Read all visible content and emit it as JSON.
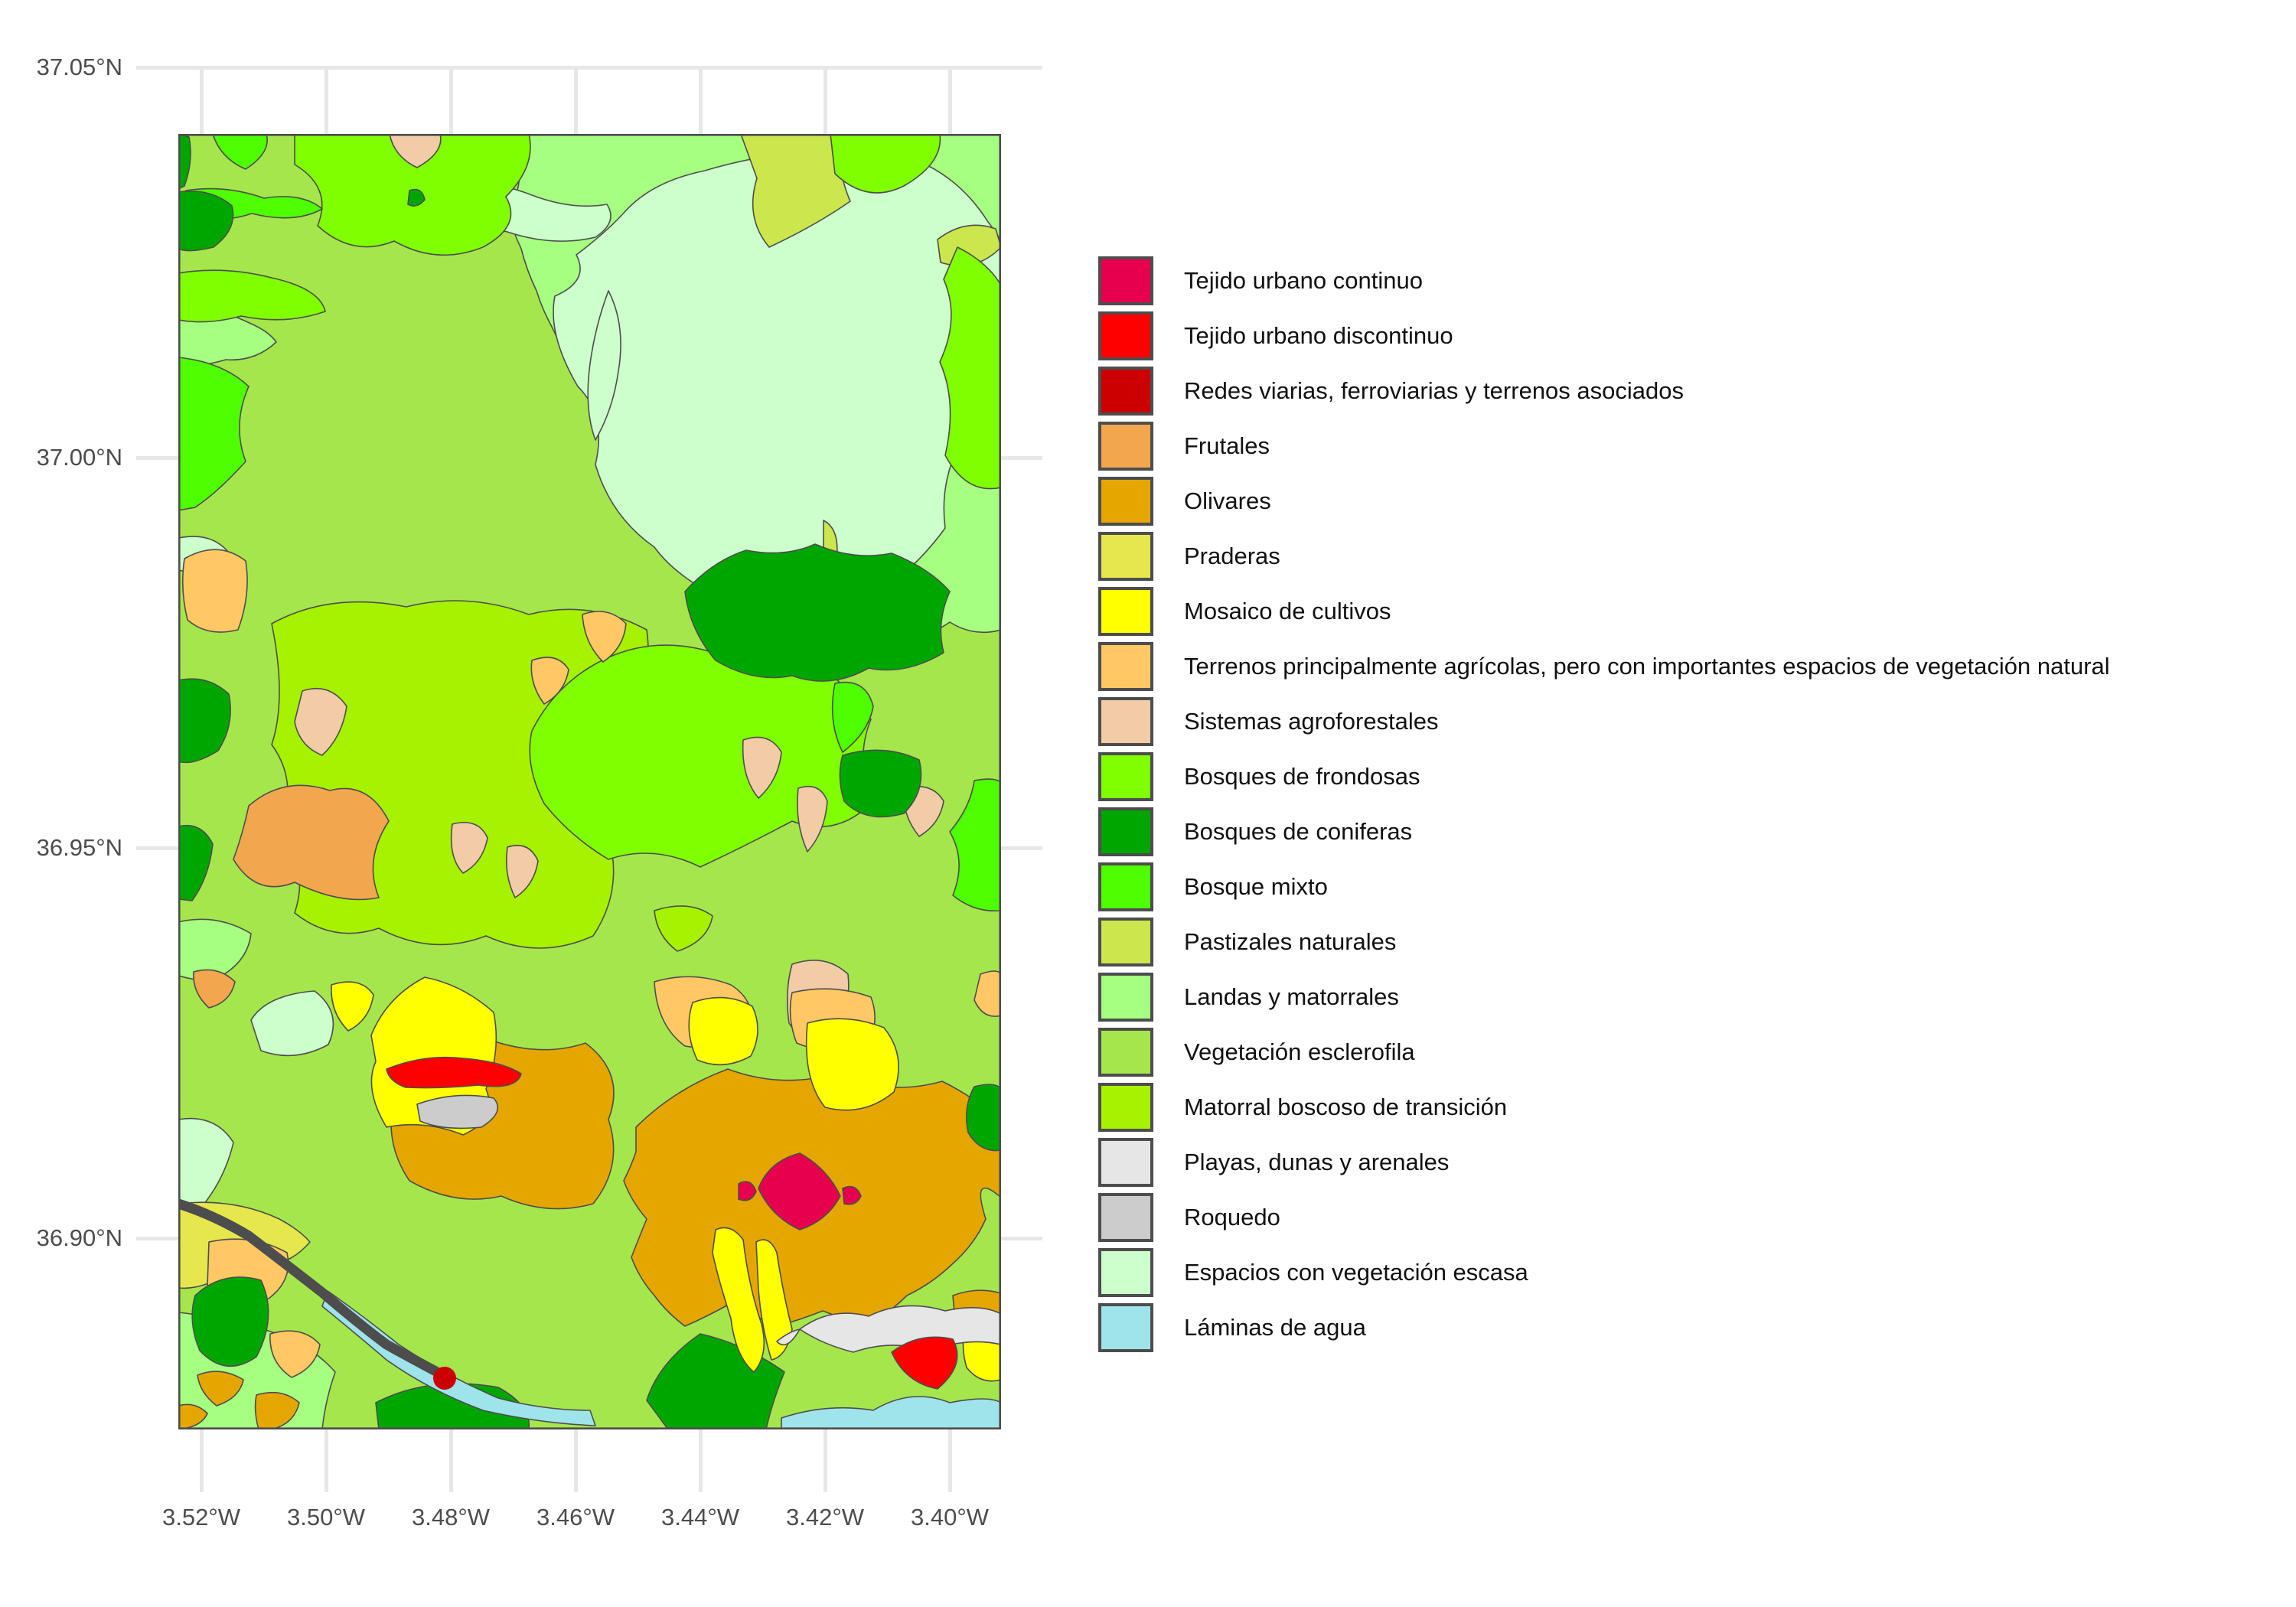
{
  "figure": {
    "type": "land-cover-map",
    "background": "#FFFFFF"
  },
  "axes": {
    "x_ticks": [
      "3.52°W",
      "3.50°W",
      "3.48°W",
      "3.46°W",
      "3.44°W",
      "3.42°W",
      "3.40°W"
    ],
    "y_ticks": [
      "37.05°N",
      "37.00°N",
      "36.95°N",
      "36.90°N"
    ]
  },
  "colors": {
    "grid": "#E7E7E7",
    "outline": "#4D4D4D",
    "axis_text": "#4D4D4D",
    "legend_text": "#111111",
    "background": "#FFFFFF"
  },
  "legend": {
    "items": [
      {
        "id": "tejido-urbano-continuo",
        "label": "Tejido urbano continuo",
        "color": "#E6004D"
      },
      {
        "id": "tejido-urbano-discontinuo",
        "label": "Tejido urbano discontinuo",
        "color": "#FF0000"
      },
      {
        "id": "redes-viarias",
        "label": "Redes viarias, ferroviarias y terrenos asociados",
        "color": "#CC0000"
      },
      {
        "id": "frutales",
        "label": "Frutales",
        "color": "#F2A64D"
      },
      {
        "id": "olivares",
        "label": "Olivares",
        "color": "#E6A600"
      },
      {
        "id": "praderas",
        "label": "Praderas",
        "color": "#E6E64D"
      },
      {
        "id": "mosaico-de-cultivos",
        "label": "Mosaico de cultivos",
        "color": "#FFFF00"
      },
      {
        "id": "terrenos-agricolas-vegetacion-natural",
        "label": "Terrenos principalmente agrícolas, pero con importantes espacios de vegetación natural",
        "color": "#FFC864"
      },
      {
        "id": "sistemas-agroforestales",
        "label": "Sistemas agroforestales",
        "color": "#F2CCA6"
      },
      {
        "id": "bosques-de-frondosas",
        "label": "Bosques de frondosas",
        "color": "#80FF00"
      },
      {
        "id": "bosques-de-coniferas",
        "label": "Bosques de coniferas",
        "color": "#00A600"
      },
      {
        "id": "bosque-mixto",
        "label": "Bosque mixto",
        "color": "#4DFF00"
      },
      {
        "id": "pastizales-naturales",
        "label": "Pastizales naturales",
        "color": "#CCE64D"
      },
      {
        "id": "landas-y-matorrales",
        "label": "Landas y matorrales",
        "color": "#A6FF80"
      },
      {
        "id": "vegetacion-esclerofila",
        "label": "Vegetación esclerofila",
        "color": "#A6E64D"
      },
      {
        "id": "matorral-boscoso-de-transicion",
        "label": "Matorral boscoso de transición",
        "color": "#A6F200"
      },
      {
        "id": "playas-dunas-y-arenales",
        "label": "Playas, dunas y arenales",
        "color": "#E6E6E6"
      },
      {
        "id": "roquedo",
        "label": "Roquedo",
        "color": "#CCCCCC"
      },
      {
        "id": "espacios-con-vegetacion-escasa",
        "label": "Espacios con vegetación escasa",
        "color": "#CCFFCC"
      },
      {
        "id": "laminas-de-agua",
        "label": "Láminas de agua",
        "color": "#9EE4EA"
      }
    ]
  }
}
